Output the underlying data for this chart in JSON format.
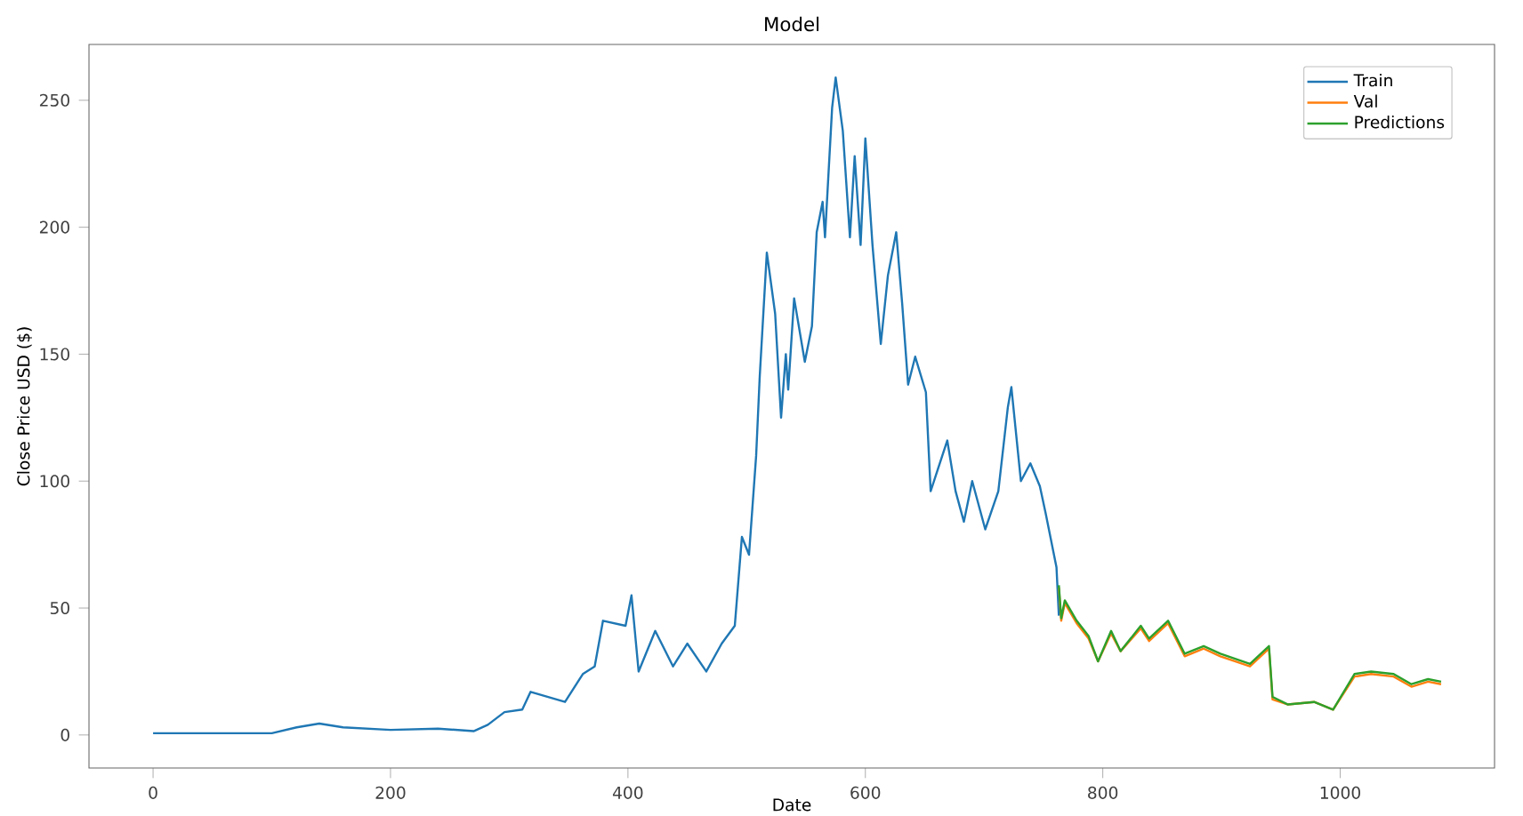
{
  "chart_data": {
    "type": "line",
    "title": "Model",
    "xlabel": "Date",
    "ylabel": "Close Price USD ($)",
    "xlim": [
      -54,
      1130
    ],
    "ylim": [
      -13,
      272
    ],
    "xticks": [
      0,
      200,
      400,
      600,
      800,
      1000
    ],
    "yticks": [
      0,
      50,
      100,
      150,
      200,
      250
    ],
    "legend": "top right",
    "series": [
      {
        "name": "Train",
        "color": "#1f77b4",
        "x": [
          0,
          50,
          100,
          121,
          140,
          160,
          200,
          240,
          270,
          282,
          296,
          311,
          318,
          347,
          362,
          372,
          379,
          398,
          403,
          409,
          423,
          438,
          450,
          466,
          479,
          490,
          496,
          502,
          508,
          511,
          517,
          524,
          529,
          533,
          535,
          540,
          549,
          555,
          559,
          564,
          566,
          572,
          575,
          581,
          587,
          591,
          596,
          600,
          606,
          613,
          619,
          626,
          631,
          636,
          642,
          651,
          655,
          669,
          676,
          683,
          690,
          701,
          712,
          720,
          723,
          731,
          739,
          747,
          752,
          761,
          763
        ],
        "values": [
          0.7,
          0.7,
          0.7,
          3,
          4.5,
          3,
          2,
          2.5,
          1.5,
          4,
          9,
          10,
          17,
          13,
          24,
          27,
          45,
          43,
          55,
          25,
          41,
          27,
          36,
          25,
          36,
          43,
          78,
          71,
          110,
          141,
          190,
          166,
          125,
          150,
          136,
          172,
          147,
          161,
          198,
          210,
          196,
          247,
          259,
          238,
          196,
          228,
          193,
          235,
          193,
          154,
          181,
          198,
          170,
          138,
          149,
          135,
          96,
          116,
          96,
          84,
          100,
          81,
          96,
          129,
          137,
          100,
          107,
          98,
          87,
          66,
          47
        ]
      },
      {
        "name": "Val",
        "color": "#ff7f0e",
        "x": [
          763,
          765,
          768,
          778,
          788,
          796,
          807,
          815,
          832,
          839,
          855,
          869,
          885,
          899,
          924,
          940,
          943,
          956,
          978,
          994,
          1012,
          1026,
          1045,
          1060,
          1074,
          1085
        ],
        "values": [
          58,
          45,
          52,
          44,
          38,
          29,
          40,
          33,
          42,
          37,
          44,
          31,
          34,
          31,
          27,
          34,
          14,
          12,
          13,
          10,
          23,
          24,
          23,
          19,
          21,
          20
        ]
      },
      {
        "name": "Predictions",
        "color": "#2ca02c",
        "x": [
          763,
          765,
          768,
          778,
          788,
          796,
          807,
          815,
          832,
          839,
          855,
          869,
          885,
          899,
          924,
          940,
          943,
          956,
          978,
          994,
          1012,
          1026,
          1045,
          1060,
          1074,
          1085
        ],
        "values": [
          59,
          46,
          53,
          45,
          39,
          29,
          41,
          33,
          43,
          38,
          45,
          32,
          35,
          32,
          28,
          35,
          15,
          12,
          13,
          10,
          24,
          25,
          24,
          20,
          22,
          21
        ]
      }
    ]
  }
}
